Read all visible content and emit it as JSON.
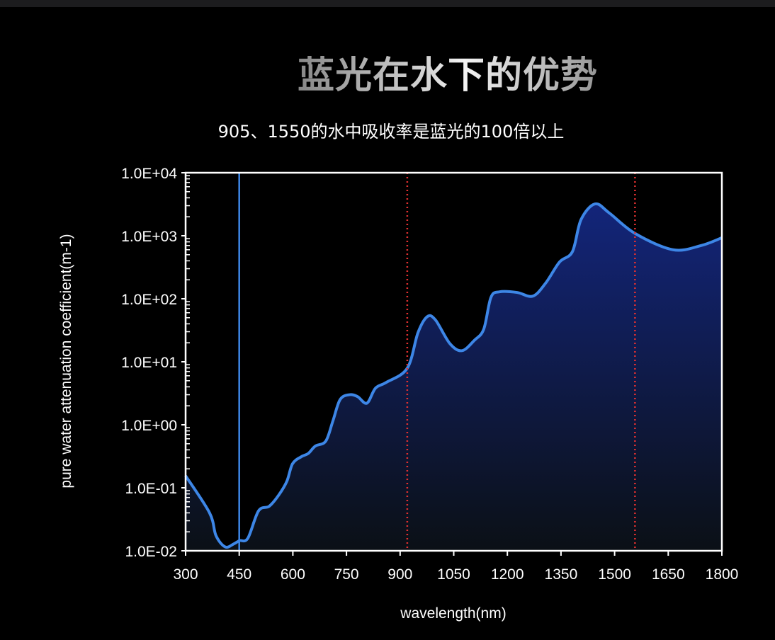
{
  "title": "蓝光在水下的优势",
  "subtitle": "905、1550的水中吸收率是蓝光的100倍以上",
  "chart_data": {
    "type": "area",
    "title": "",
    "xlabel": "wavelength(nm)",
    "ylabel": "pure water attenuation coefficient(m-1)",
    "xlim": [
      300,
      1800
    ],
    "ylim": [
      0.01,
      10000
    ],
    "yscale": "log",
    "grid": false,
    "x_ticks": [
      "300",
      "450",
      "600",
      "750",
      "900",
      "1050",
      "1200",
      "1350",
      "1500",
      "1650",
      "1800"
    ],
    "y_ticks": [
      "1.0E-02",
      "1.0E-01",
      "1.0E+00",
      "1.0E+01",
      "1.0E+02",
      "1.0E+03",
      "1.0E+04"
    ],
    "line_color": "#3d86e6",
    "fill_top_color": "#13257a",
    "vertical_lines": [
      {
        "x": 450,
        "color": "#3d86e6",
        "style": "solid"
      },
      {
        "x": 920,
        "color": "#e03030",
        "style": "dotted"
      },
      {
        "x": 1557,
        "color": "#e03030",
        "style": "dotted"
      }
    ],
    "series": [
      {
        "x": [
          300,
          367,
          385,
          411,
          435,
          451,
          474,
          504,
          534,
          560,
          583,
          599,
          623,
          643,
          663,
          692,
          712,
          732,
          758,
          781,
          807,
          831,
          861,
          920,
          950,
          976,
          999,
          1039,
          1073,
          1108,
          1134,
          1154,
          1178,
          1227,
          1271,
          1307,
          1346,
          1382,
          1406,
          1445,
          1485,
          1558,
          1663,
          1742,
          1800
        ],
        "y": [
          0.155,
          0.04,
          0.0174,
          0.0115,
          0.0129,
          0.0145,
          0.0158,
          0.043,
          0.051,
          0.076,
          0.126,
          0.24,
          0.31,
          0.35,
          0.46,
          0.55,
          1.15,
          2.5,
          3.0,
          2.8,
          2.2,
          3.8,
          4.7,
          7.9,
          29,
          52,
          46,
          19.5,
          15,
          22,
          33,
          105,
          129,
          126,
          110,
          177,
          383,
          560,
          1800,
          3200,
          2300,
          1080,
          600,
          700,
          930
        ]
      }
    ]
  }
}
